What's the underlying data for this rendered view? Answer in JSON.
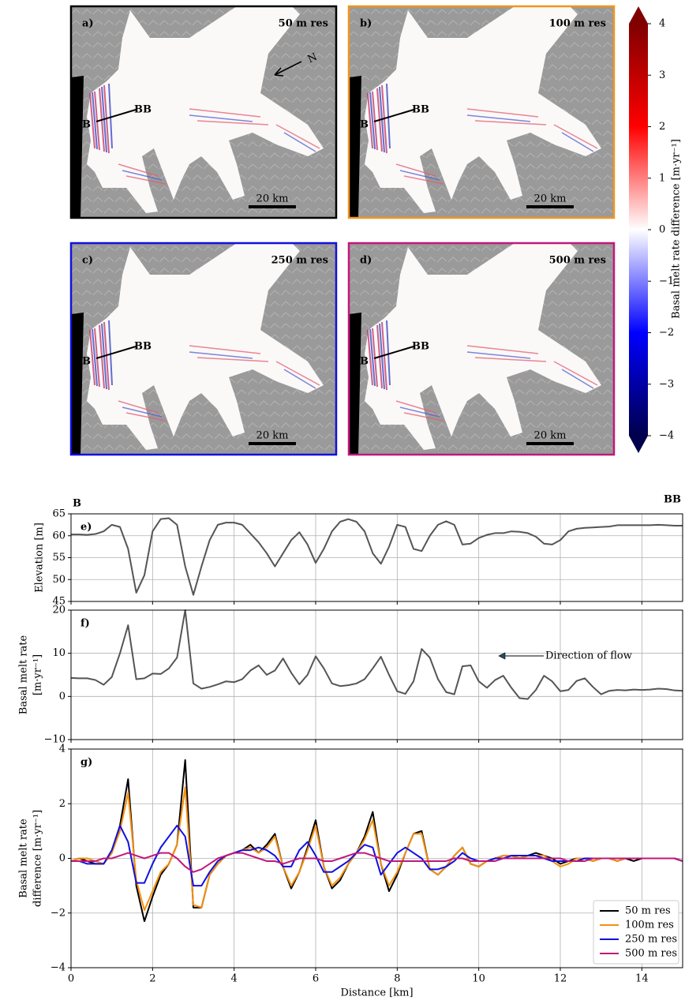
{
  "maps": [
    {
      "label": "a)",
      "resolution": "50 m res",
      "border": "#000000",
      "start": "B",
      "end": "BB",
      "scale": "20 km",
      "north": "N"
    },
    {
      "label": "b)",
      "resolution": "100 m res",
      "border": "#f0961e",
      "start": "B",
      "end": "BB",
      "scale": "20 km"
    },
    {
      "label": "c)",
      "resolution": "250 m res",
      "border": "#1010e0",
      "start": "B",
      "end": "BB",
      "scale": "20 km"
    },
    {
      "label": "d)",
      "resolution": "500 m res",
      "border": "#c0187c",
      "start": "B",
      "end": "BB",
      "scale": "20 km"
    }
  ],
  "colorbar": {
    "label": "Basal melt rate difference [m·yr⁻¹]",
    "lim": [
      -4,
      4
    ],
    "ticks": [
      {
        "value": -4,
        "label": "−4"
      },
      {
        "value": -3,
        "label": "−3"
      },
      {
        "value": -2,
        "label": "−2"
      },
      {
        "value": -1,
        "label": "−1"
      },
      0,
      1,
      2,
      3,
      4
    ]
  },
  "chart_data": [
    {
      "type": "line",
      "panel": "e)",
      "left_label": "B",
      "right_label": "BB",
      "ylabel": [
        "Elevation [m]"
      ],
      "color": "#555555",
      "xlim": [
        0,
        15
      ],
      "xticks": [
        0,
        2,
        4,
        6,
        8,
        10,
        12,
        14
      ],
      "ylim": [
        45,
        65
      ],
      "yticks": [
        45,
        50,
        55,
        60,
        65
      ],
      "grid": true,
      "x": [
        0,
        0.2,
        0.4,
        0.6,
        0.8,
        1.0,
        1.2,
        1.4,
        1.6,
        1.8,
        2.0,
        2.2,
        2.4,
        2.6,
        2.8,
        3.0,
        3.2,
        3.4,
        3.6,
        3.8,
        4.0,
        4.2,
        4.4,
        4.6,
        4.8,
        5.0,
        5.2,
        5.4,
        5.6,
        5.8,
        6.0,
        6.2,
        6.4,
        6.6,
        6.8,
        7.0,
        7.2,
        7.4,
        7.6,
        7.8,
        8.0,
        8.2,
        8.4,
        8.6,
        8.8,
        9.0,
        9.2,
        9.4,
        9.6,
        9.8,
        10.0,
        10.2,
        10.4,
        10.6,
        10.8,
        11.0,
        11.2,
        11.4,
        11.6,
        11.8,
        12.0,
        12.2,
        12.4,
        12.6,
        12.8,
        13.0,
        13.2,
        13.4,
        13.6,
        13.8,
        14.0,
        14.2,
        14.4,
        14.6,
        14.8,
        15.0
      ],
      "values": [
        60.3,
        60.3,
        60.2,
        60.4,
        61.0,
        62.5,
        62.0,
        57,
        47,
        51,
        61,
        63.8,
        64,
        62.5,
        53,
        46.5,
        53,
        59,
        62.5,
        63,
        63,
        62.5,
        60.5,
        58.5,
        56,
        53,
        56,
        59,
        60.8,
        58,
        53.8,
        57,
        61,
        63.2,
        63.8,
        63.2,
        61,
        56,
        53.6,
        57.5,
        62.5,
        62,
        57,
        56.5,
        60,
        62.5,
        63.3,
        62.5,
        58,
        58.2,
        59.5,
        60.2,
        60.6,
        60.6,
        61,
        60.9,
        60.6,
        59.8,
        58.2,
        58,
        59,
        61,
        61.6,
        61.8,
        61.9,
        62,
        62.1,
        62.4,
        62.4,
        62.4,
        62.4,
        62.4,
        62.5,
        62.4,
        62.3,
        62.3
      ]
    },
    {
      "type": "line",
      "panel": "f)",
      "ylabel": [
        "Basal melt rate",
        "[m·yr⁻¹]"
      ],
      "annotation": "Direction of flow",
      "color": "#555555",
      "xlim": [
        0,
        15
      ],
      "xticks": [
        0,
        2,
        4,
        6,
        8,
        10,
        12,
        14
      ],
      "ylim": [
        -10,
        20
      ],
      "yticks": [
        {
          "value": -10,
          "label": "−10"
        },
        0,
        10,
        20
      ],
      "grid": true,
      "x": [
        0,
        0.2,
        0.4,
        0.6,
        0.8,
        1.0,
        1.2,
        1.4,
        1.6,
        1.8,
        2.0,
        2.2,
        2.4,
        2.6,
        2.8,
        3.0,
        3.2,
        3.4,
        3.6,
        3.8,
        4.0,
        4.2,
        4.4,
        4.6,
        4.8,
        5.0,
        5.2,
        5.4,
        5.6,
        5.8,
        6.0,
        6.2,
        6.4,
        6.6,
        6.8,
        7.0,
        7.2,
        7.4,
        7.6,
        7.8,
        8.0,
        8.2,
        8.4,
        8.6,
        8.8,
        9.0,
        9.2,
        9.4,
        9.6,
        9.8,
        10.0,
        10.2,
        10.4,
        10.6,
        10.8,
        11.0,
        11.2,
        11.4,
        11.6,
        11.8,
        12.0,
        12.2,
        12.4,
        12.6,
        12.8,
        13.0,
        13.2,
        13.4,
        13.6,
        13.8,
        14.0,
        14.2,
        14.4,
        14.6,
        14.8,
        15.0
      ],
      "values": [
        4.3,
        4.2,
        4.2,
        3.8,
        2.7,
        4.5,
        10,
        16.5,
        4,
        4.2,
        5.3,
        5.2,
        6.5,
        9,
        20,
        3,
        1.8,
        2.2,
        2.8,
        3.5,
        3.3,
        4,
        6,
        7.2,
        5,
        6,
        8.8,
        5.5,
        2.8,
        5,
        9.3,
        6.5,
        3,
        2.4,
        2.6,
        3,
        4,
        6.5,
        9.2,
        5,
        1.2,
        0.6,
        3.5,
        11,
        9,
        4,
        1,
        0.5,
        7,
        7.2,
        3.5,
        2,
        3.8,
        4.8,
        2,
        -0.4,
        -0.6,
        1.5,
        4.8,
        3.5,
        1.2,
        1.5,
        3.6,
        4.2,
        2.2,
        0.5,
        1.3,
        1.5,
        1.4,
        1.6,
        1.5,
        1.6,
        1.8,
        1.7,
        1.4,
        1.3
      ]
    },
    {
      "type": "line",
      "panel": "g)",
      "ylabel": [
        "Basal melt rate",
        "difference [m·yr⁻¹]"
      ],
      "xlabel": "Distance [km]",
      "legend": "lower right",
      "xlim": [
        0,
        15
      ],
      "xticks": [
        0,
        2,
        4,
        6,
        8,
        10,
        12,
        14
      ],
      "ylim": [
        -4,
        4
      ],
      "yticks": [
        {
          "value": -4,
          "label": "−4"
        },
        {
          "value": -2,
          "label": "−2"
        },
        0,
        2,
        4
      ],
      "grid": true,
      "x": [
        0,
        0.2,
        0.4,
        0.6,
        0.8,
        1.0,
        1.2,
        1.4,
        1.6,
        1.8,
        2.0,
        2.2,
        2.4,
        2.6,
        2.8,
        3.0,
        3.2,
        3.4,
        3.6,
        3.8,
        4.0,
        4.2,
        4.4,
        4.6,
        4.8,
        5.0,
        5.2,
        5.4,
        5.6,
        5.8,
        6.0,
        6.2,
        6.4,
        6.6,
        6.8,
        7.0,
        7.2,
        7.4,
        7.6,
        7.8,
        8.0,
        8.2,
        8.4,
        8.6,
        8.8,
        9.0,
        9.2,
        9.4,
        9.6,
        9.8,
        10.0,
        10.2,
        10.4,
        10.6,
        10.8,
        11.0,
        11.2,
        11.4,
        11.6,
        11.8,
        12.0,
        12.2,
        12.4,
        12.6,
        12.8,
        13.0,
        13.2,
        13.4,
        13.6,
        13.8,
        14.0,
        14.2,
        14.4,
        14.6,
        14.8,
        15.0
      ],
      "series": [
        {
          "name": "50 m res",
          "color": "#000000",
          "values": [
            -0.1,
            0,
            -0.1,
            -0.2,
            -0.2,
            0.2,
            1.2,
            2.9,
            -1,
            -2.3,
            -1.4,
            -0.6,
            -0.2,
            0.5,
            3.6,
            -1.8,
            -1.8,
            -0.6,
            -0.2,
            0.1,
            0.2,
            0.3,
            0.5,
            0.2,
            0.5,
            0.9,
            -0.3,
            -1.1,
            -0.5,
            0.4,
            1.4,
            -0.3,
            -1.1,
            -0.8,
            -0.2,
            0.2,
            0.8,
            1.7,
            -0.2,
            -1.2,
            -0.6,
            0.2,
            0.9,
            1.0,
            -0.4,
            -0.6,
            -0.3,
            0.1,
            0.4,
            -0.2,
            -0.3,
            -0.1,
            0,
            0.1,
            0.1,
            0,
            0.1,
            0.2,
            0.1,
            0,
            -0.2,
            -0.1,
            0,
            0,
            -0.1,
            0,
            0,
            -0.1,
            0,
            -0.1,
            0,
            0,
            0,
            0,
            0,
            -0.1
          ]
        },
        {
          "name": "100m res",
          "color": "#f5900f",
          "values": [
            -0.1,
            0,
            0,
            -0.1,
            -0.2,
            0.2,
            1.0,
            2.4,
            -0.8,
            -1.9,
            -1.2,
            -0.5,
            -0.2,
            0.5,
            2.6,
            -1.7,
            -1.8,
            -0.6,
            -0.2,
            0.1,
            0.2,
            0.3,
            0.4,
            0.2,
            0.4,
            0.8,
            -0.3,
            -1.0,
            -0.5,
            0.3,
            1.2,
            -0.3,
            -1.0,
            -0.7,
            -0.2,
            0.2,
            0.7,
            1.4,
            -0.2,
            -1.0,
            -0.5,
            0.2,
            0.9,
            0.9,
            -0.4,
            -0.6,
            -0.3,
            0.1,
            0.4,
            -0.2,
            -0.3,
            -0.1,
            0,
            0.1,
            0.1,
            0,
            0.1,
            0.1,
            0.1,
            -0.1,
            -0.3,
            -0.2,
            0,
            0,
            -0.1,
            0,
            0,
            -0.1,
            0,
            0,
            0,
            0,
            0,
            0,
            0,
            -0.1
          ]
        },
        {
          "name": "250 m res",
          "color": "#1010e0",
          "values": [
            -0.1,
            -0.1,
            -0.2,
            -0.2,
            -0.2,
            0.3,
            1.2,
            0.6,
            -0.9,
            -0.9,
            -0.2,
            0.4,
            0.8,
            1.2,
            0.8,
            -1.0,
            -1.0,
            -0.5,
            -0.1,
            0.1,
            0.2,
            0.3,
            0.3,
            0.4,
            0.3,
            0.1,
            -0.3,
            -0.3,
            0.3,
            0.6,
            0.1,
            -0.5,
            -0.5,
            -0.3,
            -0.1,
            0.2,
            0.5,
            0.4,
            -0.6,
            -0.2,
            0.2,
            0.4,
            0.2,
            0,
            -0.4,
            -0.4,
            -0.3,
            -0.1,
            0.2,
            0,
            -0.1,
            -0.1,
            0,
            0,
            0.1,
            0.1,
            0.1,
            0.1,
            0,
            -0.1,
            -0.1,
            -0.1,
            -0.1,
            0,
            0,
            0,
            0,
            0,
            0,
            0,
            0,
            0,
            0,
            0,
            0,
            -0.1
          ]
        },
        {
          "name": "500 m res",
          "color": "#c0187c",
          "values": [
            -0.1,
            -0.1,
            -0.1,
            -0.1,
            0,
            0,
            0.1,
            0.2,
            0.1,
            0,
            0.1,
            0.2,
            0.2,
            0,
            -0.3,
            -0.5,
            -0.4,
            -0.2,
            0,
            0.1,
            0.2,
            0.2,
            0.1,
            0,
            -0.1,
            -0.1,
            -0.2,
            -0.1,
            0,
            0,
            0,
            -0.1,
            -0.1,
            0,
            0.1,
            0.2,
            0.2,
            0.1,
            0,
            -0.1,
            -0.1,
            -0.1,
            -0.1,
            -0.1,
            -0.1,
            -0.1,
            -0.1,
            0,
            0,
            -0.1,
            -0.1,
            -0.1,
            -0.1,
            0,
            0,
            0,
            0,
            0,
            0,
            0,
            0,
            -0.1,
            -0.1,
            -0.1,
            0,
            0,
            0,
            0,
            0,
            0,
            0,
            0,
            0,
            0,
            0,
            -0.1
          ]
        }
      ]
    }
  ]
}
